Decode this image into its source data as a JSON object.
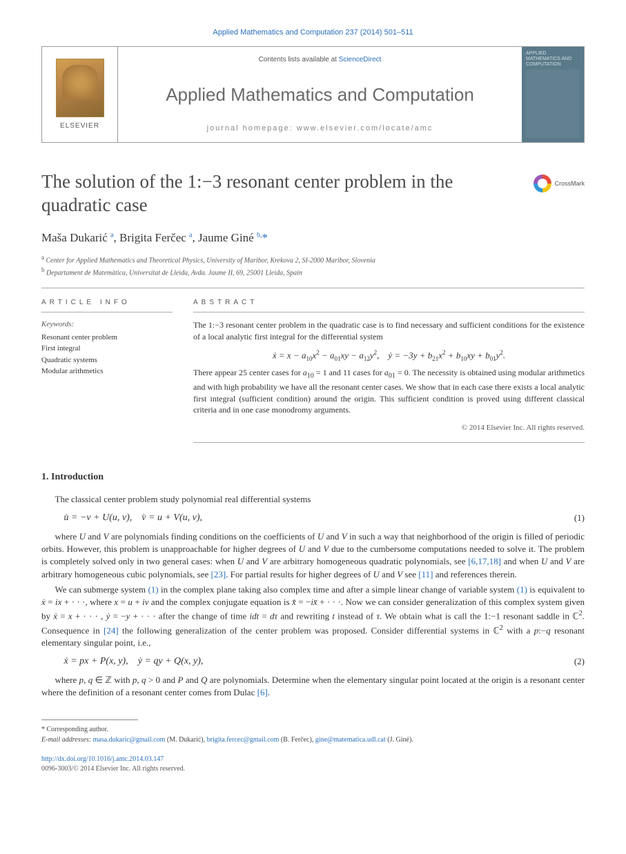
{
  "header": {
    "citation": "Applied Mathematics and Computation 237 (2014) 501–511",
    "contents_prefix": "Contents lists available at ",
    "contents_link": "ScienceDirect",
    "journal_name": "Applied Mathematics and Computation",
    "homepage_label": "journal homepage: www.elsevier.com/locate/amc",
    "publisher": "ELSEVIER",
    "cover_label": "APPLIED MATHEMATICS AND COMPUTATION"
  },
  "article": {
    "title": "The solution of the 1:−3 resonant center problem in the quadratic case",
    "crossmark": "CrossMark",
    "authors_html": "Maša Dukarić <sup>a</sup>, Brigita Ferčec <sup>a</sup>, Jaume Giné <sup>b,</sup><span class='star'>*</span>",
    "affiliations": {
      "a": "Center for Applied Mathematics and Theoretical Physics, University of Maribor, Krekova 2, SI-2000 Maribor, Slovenia",
      "b": "Departament de Matemàtica, Universitat de Lleida, Avda. Jaume II, 69, 25001 Lleida, Spain"
    }
  },
  "info": {
    "heading": "ARTICLE INFO",
    "keywords_label": "Keywords:",
    "keywords": [
      "Resonant center problem",
      "First integral",
      "Quadratic systems",
      "Modular arithmetics"
    ]
  },
  "abstract": {
    "heading": "ABSTRACT",
    "p1": "The 1:−3 resonant center problem in the quadratic case is to find necessary and sufficient conditions for the existence of a local analytic first integral for the differential system",
    "eq": "ẋ = x − a₁₀x² − a₀₁xy − a₁₂y²,    ẏ = −3y + b₂₁x² + b₁₀xy + b₀₁y².",
    "p2": "There appear 25 center cases for a₁₀ = 1 and 11 cases for a₀₁ = 0. The necessity is obtained using modular arithmetics and with high probability we have all the resonant center cases. We show that in each case there exists a local analytic first integral (sufficient condition) around the origin. This sufficient condition is proved using different classical criteria and in one case monodromy arguments.",
    "copyright": "© 2014 Elsevier Inc. All rights reserved."
  },
  "sections": {
    "s1": {
      "heading": "1. Introduction",
      "p1": "The classical center problem study polynomial real differential systems",
      "eq1": "u̇ = −v + U(u, v),    v̇ = u + V(u, v),",
      "eq1_num": "(1)",
      "p2_a": "where ",
      "p2_b": " and ",
      "p2_c": " are polynomials finding conditions on the coefficients of ",
      "p2_d": " in such a way that neighborhood of the origin is filled of periodic orbits. However, this problem is unapproachable for higher degrees of ",
      "p2_e": " due to the cumbersome computations needed to solve it. The problem is completely solved only in two general cases: when ",
      "p2_f": " are arbitrary homogeneous quadratic polynomials, see ",
      "p2_g": " and when ",
      "p2_h": " are arbitrary homogeneous cubic polynomials, see ",
      "p2_i": ". For partial results for higher degrees of ",
      "p2_j": " see ",
      "p2_k": " and references therein.",
      "ref1": "[6,17,18]",
      "ref2": "[23]",
      "ref3": "[11]",
      "p3_a": "We can submerge system ",
      "p3_b": " in the complex plane taking also complex time and after a simple linear change of variable system ",
      "p3_c": " is equivalent to ẋ = ix + · · ·, where x = u + iv and the complex conjugate equation is x̄̇ = −ix̄ + · · ·. Now we can consider generalization of this complex system given by ẋ = x + · · · , ẏ = −y + · · · after the change of time idt = dτ and rewriting t instead of τ. We obtain what is call the 1:−1 resonant saddle in ℂ². Consequence in ",
      "p3_d": " the following generalization of the center problem was proposed. Consider differential systems in ℂ² with a p:−q resonant elementary singular point, i.e.,",
      "ref_eq1a": "(1)",
      "ref_eq1b": "(1)",
      "ref4": "[24]",
      "eq2": "ẋ = px + P(x, y),    ẏ = qy + Q(x, y),",
      "eq2_num": "(2)",
      "p4_a": "where p, q ∈ ℤ with p, q > 0 and ",
      "p4_b": " and ",
      "p4_c": " are polynomials. Determine when the elementary singular point located at the origin is a resonant center where the definition of a resonant center comes from Dulac ",
      "p4_d": ".",
      "ref5": "[6]"
    }
  },
  "footnote": {
    "corr": "Corresponding author.",
    "email_label": "E-mail addresses:",
    "emails": [
      {
        "addr": "masa.dukaric@gmail.com",
        "who": "(M. Dukarić)"
      },
      {
        "addr": "brigita.fercec@gmail.com",
        "who": "(B. Ferčec)"
      },
      {
        "addr": "gine@matematica.udl.cat",
        "who": "(J. Giné)"
      }
    ]
  },
  "doi": {
    "url": "http://dx.doi.org/10.1016/j.amc.2014.03.147",
    "issn_line": "0096-3003/© 2014 Elsevier Inc. All rights reserved."
  },
  "colors": {
    "link": "#2a6ebb",
    "text": "#333333",
    "muted": "#6a6a6a"
  }
}
